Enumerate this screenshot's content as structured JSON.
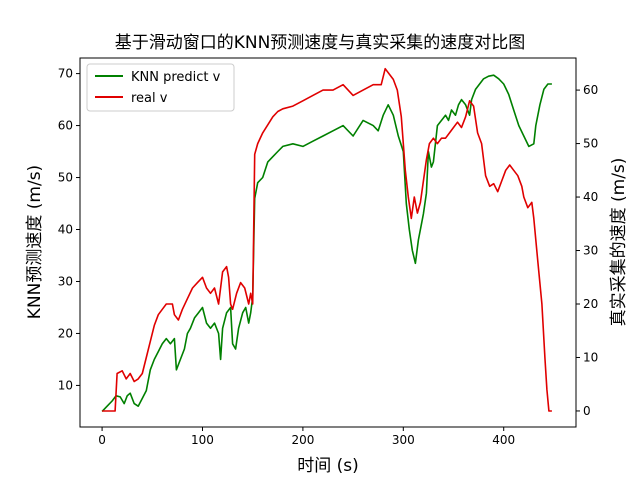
{
  "chart_data": {
    "type": "line",
    "title": "基于滑动窗口的KNN预测速度与真实采集的速度对比图",
    "xlabel": "时间 (s)",
    "ylabel_left": "KNN预测速度 (m/s)",
    "ylabel_right": "真实采集的速度 (m/s)",
    "xlim": [
      -22,
      472
    ],
    "ylim_left": [
      2,
      73
    ],
    "ylim_right": [
      -3,
      66
    ],
    "x_ticks": [
      0,
      100,
      200,
      300,
      400
    ],
    "y_ticks_left": [
      10,
      20,
      30,
      40,
      50,
      60,
      70
    ],
    "y_ticks_right": [
      0,
      10,
      20,
      30,
      40,
      50,
      60
    ],
    "legend_position": "top-left",
    "series": [
      {
        "name": "KNN predict v",
        "color": "#008000",
        "axis": "left",
        "points": [
          [
            0,
            5
          ],
          [
            5,
            6
          ],
          [
            10,
            7
          ],
          [
            14,
            8
          ],
          [
            18,
            7.8
          ],
          [
            22,
            6.5
          ],
          [
            25,
            8
          ],
          [
            28,
            8.5
          ],
          [
            32,
            6.5
          ],
          [
            36,
            6
          ],
          [
            40,
            7.5
          ],
          [
            44,
            9
          ],
          [
            48,
            13
          ],
          [
            52,
            15
          ],
          [
            56,
            16.5
          ],
          [
            60,
            18
          ],
          [
            64,
            19
          ],
          [
            68,
            18
          ],
          [
            72,
            19
          ],
          [
            74,
            13
          ],
          [
            78,
            15
          ],
          [
            82,
            17
          ],
          [
            85,
            20
          ],
          [
            88,
            21
          ],
          [
            92,
            23
          ],
          [
            96,
            24
          ],
          [
            100,
            25
          ],
          [
            104,
            22
          ],
          [
            108,
            21
          ],
          [
            112,
            22
          ],
          [
            116,
            20
          ],
          [
            118,
            15
          ],
          [
            120,
            21
          ],
          [
            124,
            24
          ],
          [
            128,
            25
          ],
          [
            130,
            18
          ],
          [
            133,
            17
          ],
          [
            136,
            21
          ],
          [
            140,
            24
          ],
          [
            143,
            25
          ],
          [
            146,
            22
          ],
          [
            148,
            24
          ],
          [
            150,
            27
          ],
          [
            152,
            46
          ],
          [
            155,
            49
          ],
          [
            160,
            50
          ],
          [
            165,
            53
          ],
          [
            170,
            54
          ],
          [
            175,
            55
          ],
          [
            180,
            56
          ],
          [
            190,
            56.5
          ],
          [
            200,
            56
          ],
          [
            210,
            57
          ],
          [
            220,
            58
          ],
          [
            230,
            59
          ],
          [
            240,
            60
          ],
          [
            250,
            58
          ],
          [
            260,
            61
          ],
          [
            270,
            60
          ],
          [
            275,
            59
          ],
          [
            280,
            62
          ],
          [
            285,
            64
          ],
          [
            290,
            62
          ],
          [
            295,
            58
          ],
          [
            300,
            55
          ],
          [
            303,
            45
          ],
          [
            306,
            40
          ],
          [
            309,
            36
          ],
          [
            312,
            33.5
          ],
          [
            315,
            38
          ],
          [
            318,
            41
          ],
          [
            320,
            43
          ],
          [
            323,
            47
          ],
          [
            325,
            55
          ],
          [
            328,
            52
          ],
          [
            330,
            53
          ],
          [
            334,
            60
          ],
          [
            338,
            61
          ],
          [
            342,
            62
          ],
          [
            345,
            61
          ],
          [
            348,
            63
          ],
          [
            352,
            62
          ],
          [
            355,
            64
          ],
          [
            358,
            65
          ],
          [
            362,
            64
          ],
          [
            366,
            62
          ],
          [
            368,
            65
          ],
          [
            372,
            67
          ],
          [
            376,
            68
          ],
          [
            380,
            69
          ],
          [
            385,
            69.5
          ],
          [
            390,
            69.7
          ],
          [
            395,
            69
          ],
          [
            400,
            68
          ],
          [
            405,
            66
          ],
          [
            410,
            63
          ],
          [
            415,
            60
          ],
          [
            420,
            58
          ],
          [
            425,
            56
          ],
          [
            430,
            56.5
          ],
          [
            432,
            60
          ],
          [
            436,
            64
          ],
          [
            440,
            67
          ],
          [
            444,
            68
          ],
          [
            448,
            68
          ]
        ]
      },
      {
        "name": "real v",
        "color": "#e00000",
        "axis": "right",
        "points": [
          [
            0,
            0
          ],
          [
            5,
            0
          ],
          [
            10,
            0
          ],
          [
            13,
            0
          ],
          [
            15,
            7
          ],
          [
            20,
            7.5
          ],
          [
            24,
            6
          ],
          [
            28,
            7
          ],
          [
            32,
            5.5
          ],
          [
            36,
            6
          ],
          [
            40,
            7
          ],
          [
            44,
            10
          ],
          [
            48,
            13
          ],
          [
            52,
            16
          ],
          [
            56,
            18
          ],
          [
            60,
            19
          ],
          [
            64,
            20
          ],
          [
            70,
            20
          ],
          [
            72,
            18
          ],
          [
            76,
            17
          ],
          [
            80,
            19
          ],
          [
            85,
            21
          ],
          [
            90,
            23
          ],
          [
            95,
            24
          ],
          [
            100,
            25
          ],
          [
            104,
            23
          ],
          [
            108,
            22
          ],
          [
            112,
            23
          ],
          [
            116,
            20
          ],
          [
            120,
            26
          ],
          [
            124,
            27
          ],
          [
            126,
            25
          ],
          [
            128,
            20
          ],
          [
            130,
            19
          ],
          [
            134,
            22
          ],
          [
            138,
            24
          ],
          [
            142,
            23
          ],
          [
            146,
            20
          ],
          [
            148,
            22
          ],
          [
            150,
            20
          ],
          [
            152,
            48
          ],
          [
            155,
            50
          ],
          [
            160,
            52
          ],
          [
            165,
            53.5
          ],
          [
            170,
            55
          ],
          [
            175,
            56
          ],
          [
            180,
            56.5
          ],
          [
            190,
            57
          ],
          [
            200,
            58
          ],
          [
            210,
            59
          ],
          [
            220,
            60
          ],
          [
            230,
            60
          ],
          [
            240,
            61
          ],
          [
            250,
            59
          ],
          [
            260,
            60
          ],
          [
            270,
            61
          ],
          [
            278,
            61
          ],
          [
            282,
            64
          ],
          [
            286,
            63
          ],
          [
            290,
            62
          ],
          [
            294,
            60
          ],
          [
            298,
            55
          ],
          [
            302,
            45
          ],
          [
            305,
            40
          ],
          [
            308,
            36
          ],
          [
            311,
            40
          ],
          [
            314,
            37
          ],
          [
            317,
            39
          ],
          [
            320,
            43
          ],
          [
            323,
            47
          ],
          [
            326,
            50
          ],
          [
            330,
            51
          ],
          [
            334,
            50
          ],
          [
            338,
            51
          ],
          [
            342,
            51
          ],
          [
            346,
            52
          ],
          [
            350,
            53
          ],
          [
            354,
            54
          ],
          [
            358,
            53
          ],
          [
            362,
            55
          ],
          [
            366,
            58
          ],
          [
            370,
            57
          ],
          [
            374,
            52
          ],
          [
            378,
            50
          ],
          [
            382,
            44
          ],
          [
            386,
            42
          ],
          [
            390,
            42.5
          ],
          [
            394,
            41
          ],
          [
            398,
            43
          ],
          [
            402,
            45
          ],
          [
            406,
            46
          ],
          [
            410,
            45
          ],
          [
            414,
            44
          ],
          [
            418,
            42
          ],
          [
            420,
            40
          ],
          [
            424,
            38
          ],
          [
            428,
            39
          ],
          [
            430,
            36
          ],
          [
            434,
            28
          ],
          [
            438,
            20
          ],
          [
            441,
            10
          ],
          [
            443,
            4
          ],
          [
            445,
            0
          ],
          [
            448,
            0
          ]
        ]
      }
    ]
  }
}
